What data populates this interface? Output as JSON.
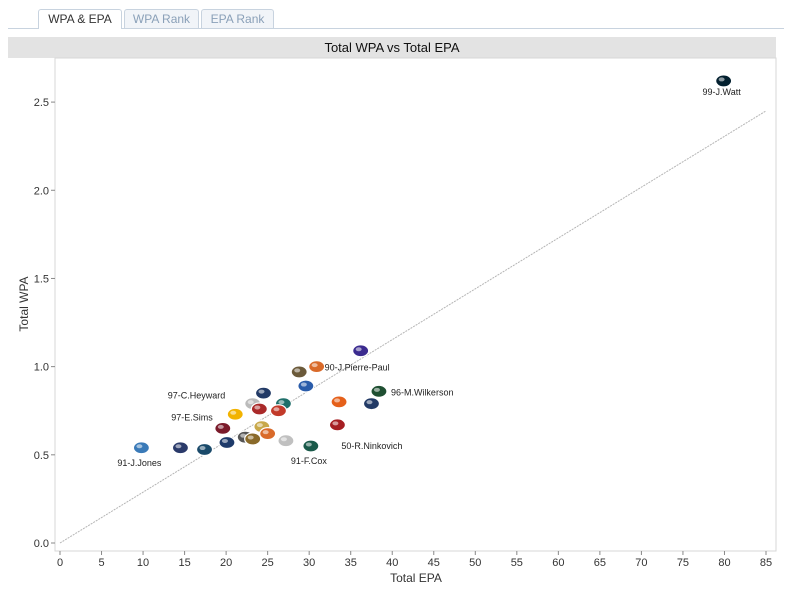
{
  "tabs": [
    {
      "label": "WPA & EPA",
      "active": true
    },
    {
      "label": "WPA Rank",
      "active": false
    },
    {
      "label": "EPA Rank",
      "active": false
    }
  ],
  "chart_data": {
    "type": "scatter",
    "title": "Total WPA vs Total EPA",
    "xlabel": "Total EPA",
    "ylabel": "Total WPA",
    "xlim": [
      0,
      85
    ],
    "ylim": [
      0,
      2.75
    ],
    "xticks": [
      0,
      5,
      10,
      15,
      20,
      25,
      30,
      35,
      40,
      45,
      50,
      55,
      60,
      65,
      70,
      75,
      80,
      85
    ],
    "yticks": [
      0.0,
      0.5,
      1.0,
      1.5,
      2.0,
      2.5
    ],
    "ytick_labels": [
      "0.0",
      "0.5",
      "1.0",
      "1.5",
      "2.0",
      "2.5"
    ],
    "grid": false,
    "trend_line": {
      "x": [
        0,
        85
      ],
      "y": [
        0.0,
        2.45
      ],
      "color": "#b5b5b5"
    },
    "points": [
      {
        "x": 79.9,
        "y": 2.62,
        "color": "#03202f",
        "label": "99-J.Watt"
      },
      {
        "x": 36.2,
        "y": 1.09,
        "color": "#3b2b8f",
        "label": ""
      },
      {
        "x": 30.9,
        "y": 1.0,
        "color": "#d96a2a",
        "label": "90-J.Pierre-Paul"
      },
      {
        "x": 28.8,
        "y": 0.97,
        "color": "#6b5a3a",
        "label": ""
      },
      {
        "x": 29.6,
        "y": 0.89,
        "color": "#2a5caa",
        "label": ""
      },
      {
        "x": 38.4,
        "y": 0.86,
        "color": "#1f4f32",
        "label": "96-M.Wilkerson"
      },
      {
        "x": 33.6,
        "y": 0.8,
        "color": "#e5601a",
        "label": ""
      },
      {
        "x": 37.5,
        "y": 0.79,
        "color": "#223a66",
        "label": ""
      },
      {
        "x": 33.4,
        "y": 0.67,
        "color": "#a61e22",
        "label": "50-R.Ninkovich"
      },
      {
        "x": 24.5,
        "y": 0.85,
        "color": "#223a66",
        "label": ""
      },
      {
        "x": 23.2,
        "y": 0.79,
        "color": "#bbbbbb",
        "label": ""
      },
      {
        "x": 26.9,
        "y": 0.79,
        "color": "#1f6f6a",
        "label": ""
      },
      {
        "x": 26.3,
        "y": 0.75,
        "color": "#c23a2a",
        "label": ""
      },
      {
        "x": 24.0,
        "y": 0.76,
        "color": "#aa2a2a",
        "label": ""
      },
      {
        "x": 21.1,
        "y": 0.73,
        "color": "#f2b300",
        "label": "97-C.Heyward"
      },
      {
        "x": 24.3,
        "y": 0.66,
        "color": "#c8a84a",
        "label": ""
      },
      {
        "x": 19.6,
        "y": 0.65,
        "color": "#7a1a2a",
        "label": "97-E.Sims"
      },
      {
        "x": 25.0,
        "y": 0.62,
        "color": "#d96a2a",
        "label": ""
      },
      {
        "x": 22.3,
        "y": 0.6,
        "color": "#555555",
        "label": ""
      },
      {
        "x": 23.2,
        "y": 0.59,
        "color": "#8a6a2a",
        "label": ""
      },
      {
        "x": 27.2,
        "y": 0.58,
        "color": "#c0c0c0",
        "label": ""
      },
      {
        "x": 30.2,
        "y": 0.55,
        "color": "#1a5a4a",
        "label": "91-F.Cox"
      },
      {
        "x": 20.1,
        "y": 0.57,
        "color": "#1e3a6a",
        "label": ""
      },
      {
        "x": 17.4,
        "y": 0.53,
        "color": "#1a4a6a",
        "label": ""
      },
      {
        "x": 14.5,
        "y": 0.54,
        "color": "#2a3a6a",
        "label": ""
      },
      {
        "x": 9.8,
        "y": 0.54,
        "color": "#3a7ab8",
        "label": "91-J.Jones"
      }
    ]
  }
}
